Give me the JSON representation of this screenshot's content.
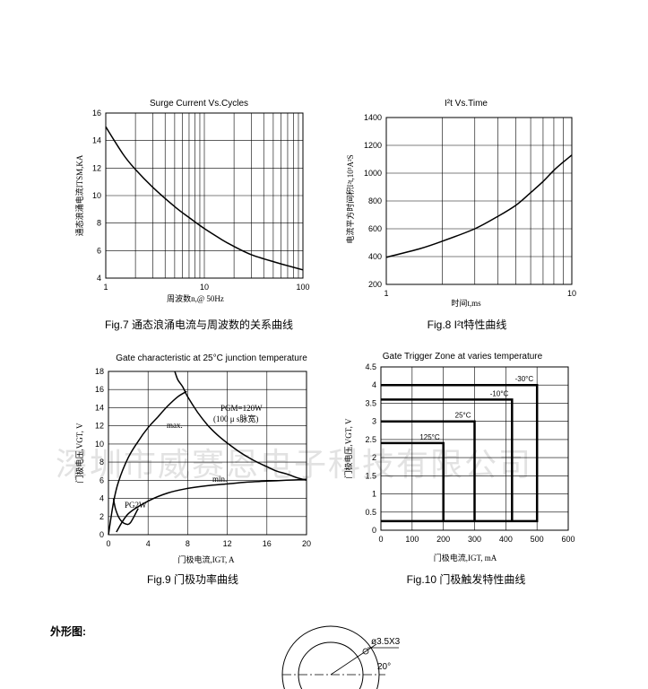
{
  "chart_data": [
    {
      "id": "fig7",
      "type": "line",
      "title": "Surge Current Vs.Cycles",
      "xlabel": "周波数n,@ 50Hz",
      "ylabel": "通态浪涌电流ITSM,KA",
      "xscale": "log",
      "xlim": [
        1,
        100
      ],
      "ylim": [
        4,
        16
      ],
      "xticks": [
        "1",
        "10",
        "100"
      ],
      "yticks": [
        "4",
        "6",
        "8",
        "10",
        "12",
        "14",
        "16"
      ],
      "grid": true,
      "series": [
        {
          "x": [
            1,
            1.5,
            2,
            3,
            5,
            7,
            10,
            15,
            20,
            30,
            50,
            70,
            100
          ],
          "y": [
            15.0,
            13.0,
            11.9,
            10.6,
            9.2,
            8.4,
            7.6,
            6.8,
            6.3,
            5.7,
            5.2,
            4.9,
            4.6
          ]
        }
      ],
      "caption": "Fig.7 通态浪涌电流与周波数的关系曲线"
    },
    {
      "id": "fig8",
      "type": "line",
      "title": "I²t  Vs.Time",
      "xlabel": "时间t,ms",
      "ylabel": "电流平方时间积I²t,10³A²S",
      "xscale": "log",
      "xlim": [
        1,
        10
      ],
      "ylim": [
        200,
        1400
      ],
      "xticks": [
        "1",
        "10"
      ],
      "yticks": [
        "200",
        "400",
        "600",
        "800",
        "1000",
        "1200",
        "1400"
      ],
      "grid": true,
      "series": [
        {
          "x": [
            1,
            1.5,
            2,
            3,
            4,
            5,
            6,
            7,
            8,
            9,
            10
          ],
          "y": [
            395,
            455,
            510,
            600,
            690,
            770,
            860,
            940,
            1020,
            1080,
            1130
          ]
        }
      ],
      "caption": "Fig.8 I²t特性曲线"
    },
    {
      "id": "fig9",
      "type": "line",
      "title": "Gate characteristic at 25°C junction temperature",
      "xlabel": "门极电流,IGT,  A",
      "ylabel": "门极电压,VGT,  V",
      "xlim": [
        0,
        20
      ],
      "ylim": [
        0,
        18
      ],
      "xticks": [
        "0",
        "4",
        "8",
        "12",
        "16",
        "20"
      ],
      "yticks": [
        "0",
        "2",
        "4",
        "6",
        "8",
        "10",
        "12",
        "14",
        "16",
        "18"
      ],
      "grid": true,
      "annotations": [
        "max.",
        "min.",
        "PGM=120W",
        "(100 μ s脉宽)",
        "PG2W"
      ],
      "series": [
        {
          "name": "max.",
          "x": [
            0,
            0.5,
            1,
            2,
            3,
            4,
            5,
            6,
            7,
            7.9
          ],
          "y": [
            0,
            3.5,
            5.8,
            8.5,
            10.3,
            11.8,
            13.0,
            14.2,
            15.2,
            15.8
          ]
        },
        {
          "name": "min.",
          "x": [
            0.8,
            2,
            4,
            6,
            8,
            10,
            12,
            14,
            16,
            18,
            20
          ],
          "y": [
            0.3,
            2.3,
            3.7,
            4.6,
            5.1,
            5.4,
            5.6,
            5.8,
            5.9,
            6.0,
            6.1
          ]
        },
        {
          "name": "PGM=120W",
          "x": [
            6.7,
            7,
            7.5,
            8,
            9,
            10,
            11,
            12,
            13,
            14,
            15,
            16,
            17,
            18,
            19,
            20
          ],
          "y": [
            18,
            17.1,
            16.3,
            15.2,
            13.5,
            12.1,
            11.0,
            10.1,
            9.3,
            8.6,
            8.0,
            7.5,
            7.0,
            6.7,
            6.3,
            6.0
          ]
        },
        {
          "name": "PG2W",
          "x": [
            0.5,
            0.7,
            1,
            1.3,
            1.7,
            2.2,
            3
          ],
          "y": [
            4.0,
            2.9,
            2.0,
            1.5,
            1.2,
            1.3,
            2.9
          ]
        }
      ],
      "caption": "Fig.9 门极功率曲线"
    },
    {
      "id": "fig10",
      "type": "line",
      "title": "Gate Trigger Zone at varies temperature",
      "xlabel": "门极电流,IGT,  mA",
      "ylabel": "门极电压,VGT,  V",
      "xlim": [
        0,
        600
      ],
      "ylim": [
        0,
        4.5
      ],
      "xticks": [
        "0",
        "100",
        "200",
        "300",
        "400",
        "500",
        "600"
      ],
      "yticks": [
        "0",
        "0.5",
        "1",
        "1.5",
        "2",
        "2.5",
        "3",
        "3.5",
        "4",
        "4.5"
      ],
      "grid": true,
      "series": [
        {
          "name": "-30°C",
          "x": [
            0,
            500,
            500,
            0
          ],
          "y": [
            4.0,
            4.0,
            0.25,
            0.25
          ]
        },
        {
          "name": "-10°C",
          "x": [
            0,
            420,
            420
          ],
          "y": [
            3.6,
            3.6,
            0.25
          ]
        },
        {
          "name": "25°C",
          "x": [
            0,
            300,
            300
          ],
          "y": [
            3.0,
            3.0,
            0.25
          ]
        },
        {
          "name": "125°C",
          "x": [
            0,
            200,
            200
          ],
          "y": [
            2.4,
            2.4,
            0.25
          ]
        }
      ],
      "caption": "Fig.10 门极触发特性曲线"
    }
  ],
  "page": {
    "watermark": "深圳市威赛恩电子科技有限公司",
    "outline_label": "外形图:",
    "outline_dim_hole": "ø3.5X3",
    "outline_dim_angle": "20°"
  }
}
